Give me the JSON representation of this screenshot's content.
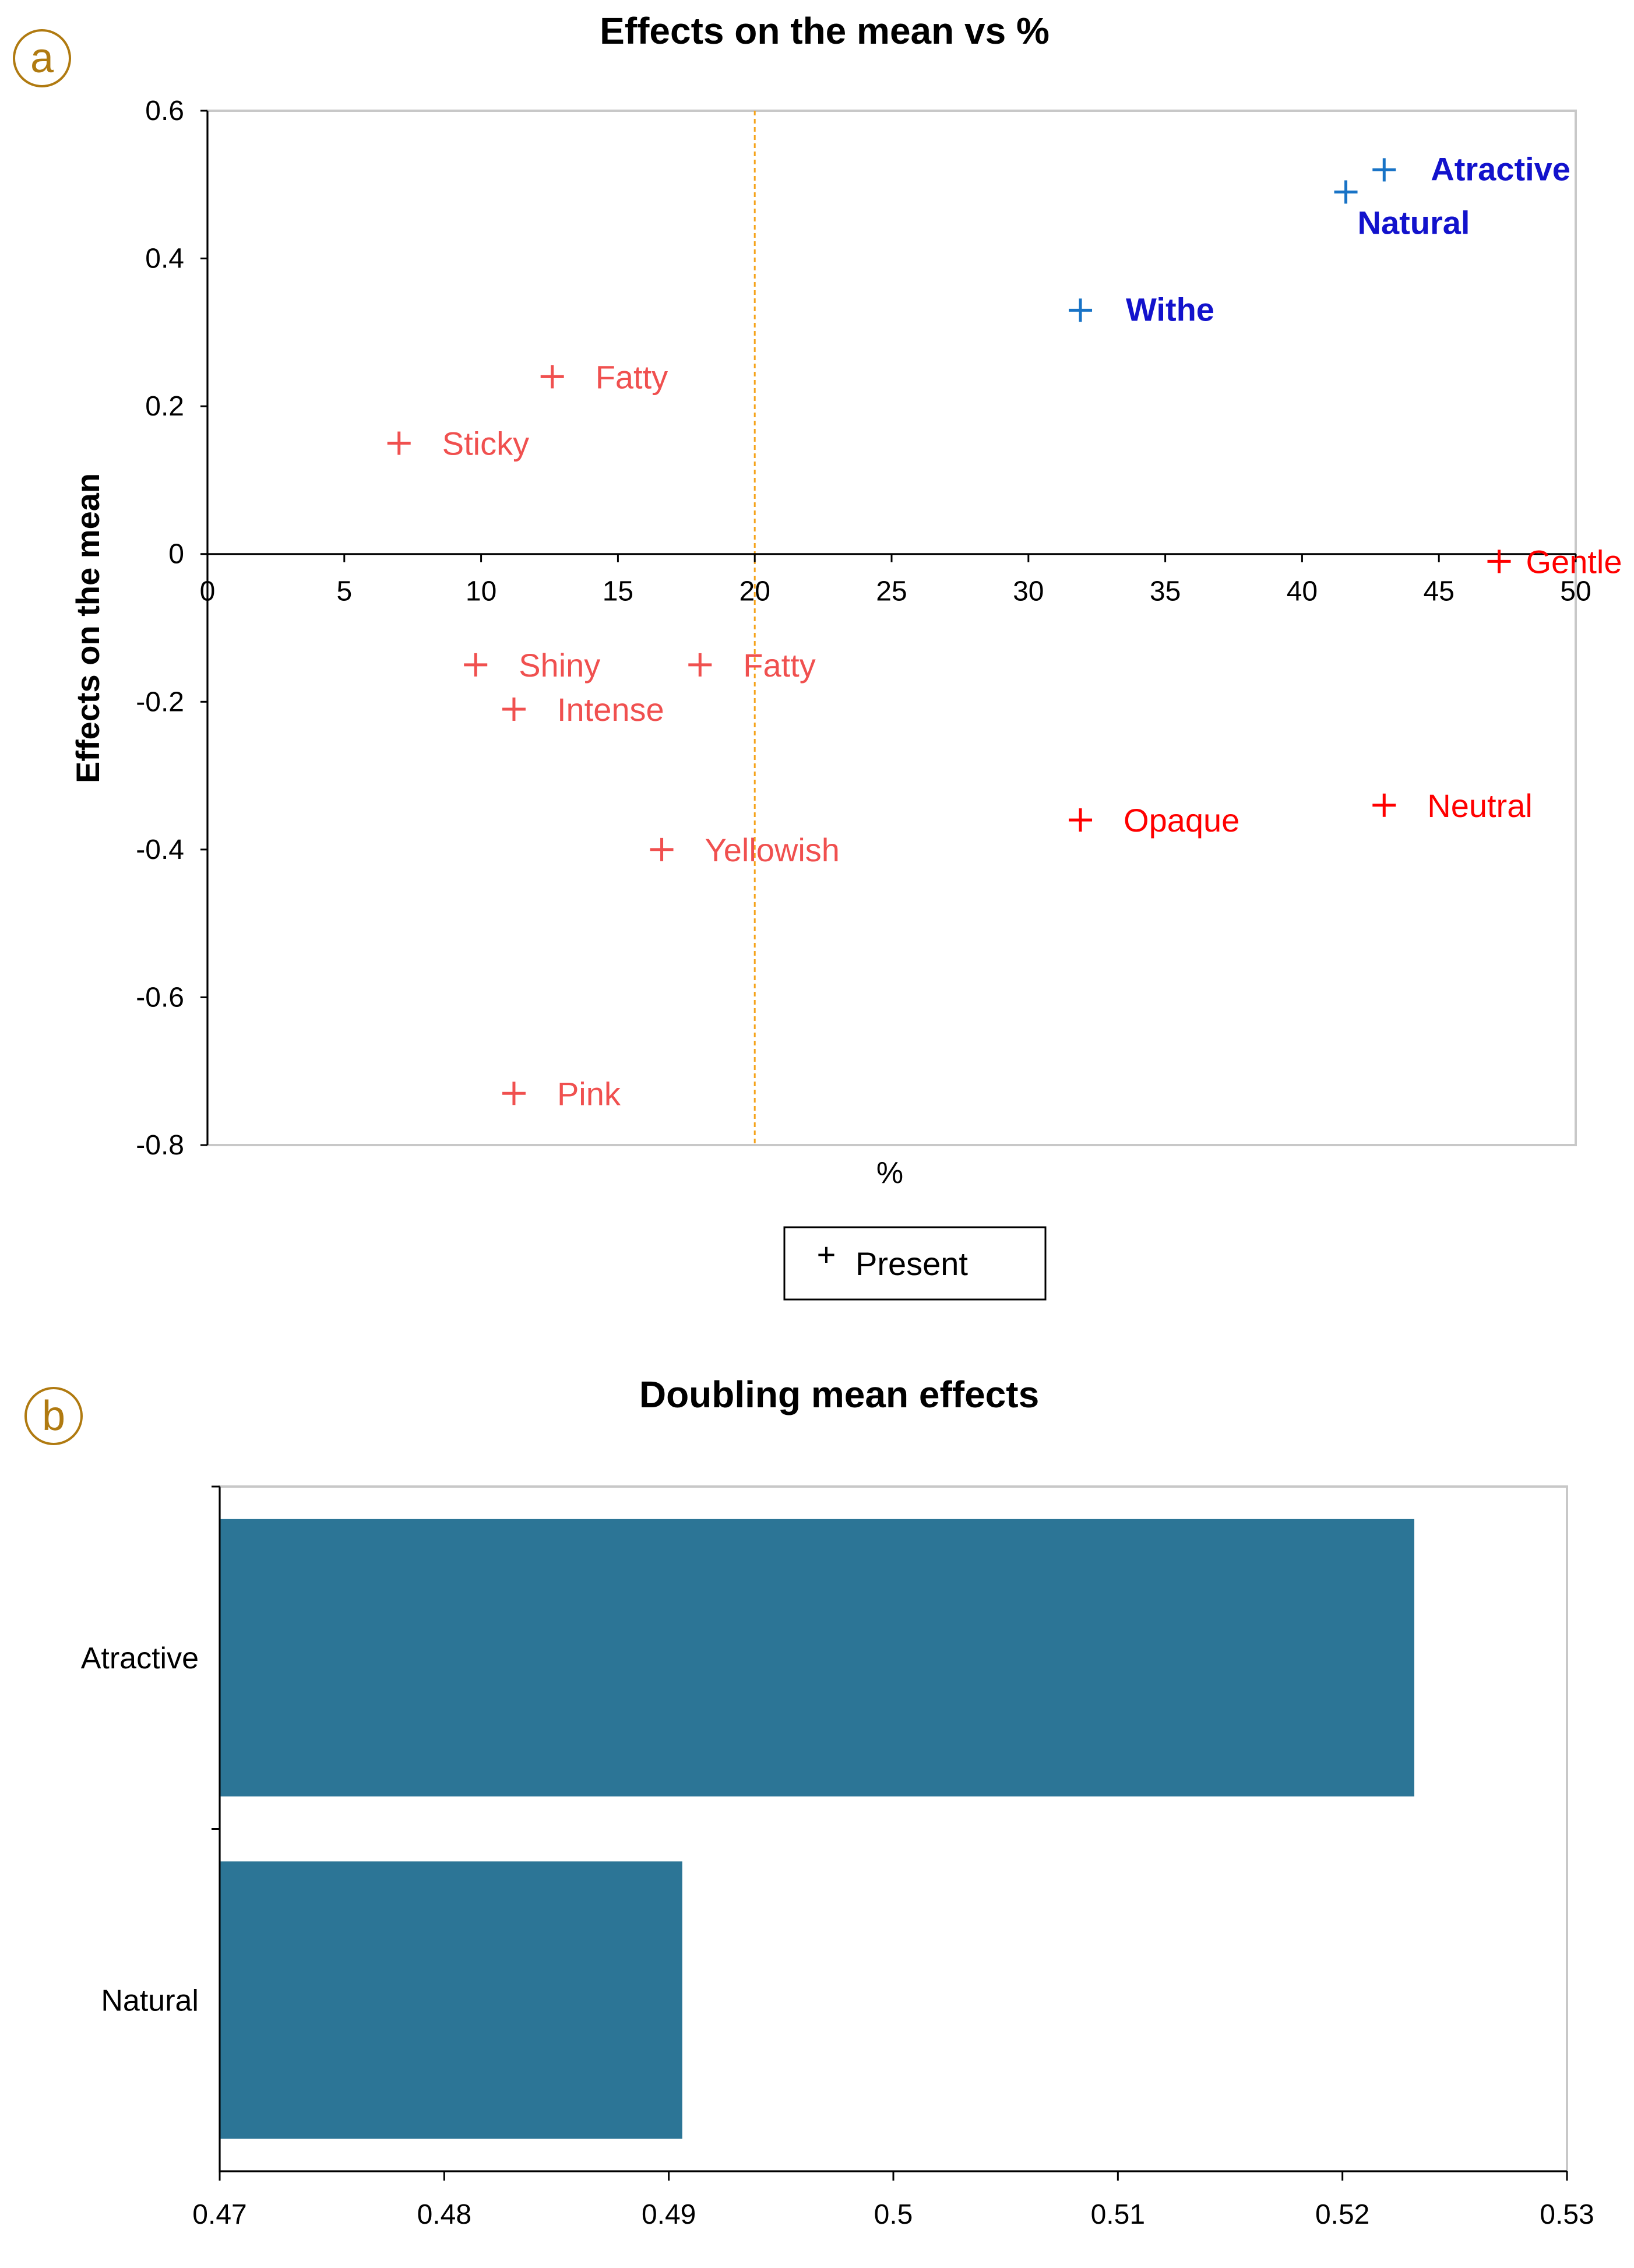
{
  "panel_a_badge": "a",
  "panel_b_badge": "b",
  "chart_data": [
    {
      "type": "scatter",
      "title": "Effects on the mean vs %",
      "xlabel": "%",
      "ylabel": "Effects on the mean",
      "xlim": [
        0,
        50
      ],
      "ylim": [
        -0.8,
        0.6
      ],
      "xticks": [
        "0",
        "5",
        "10",
        "15",
        "20",
        "25",
        "30",
        "35",
        "40",
        "45",
        "50"
      ],
      "yticks": [
        "-0.8",
        "-0.6",
        "-0.4",
        "-0.2",
        "0",
        "0.2",
        "0.4",
        "0.6"
      ],
      "reference_line_x": 20,
      "legend": {
        "marker": "+",
        "label": "Present"
      },
      "colors": {
        "negative": "#ff0000",
        "negative_light": "#f0504f",
        "positive": "#1873c6",
        "positive_label": "#1212cc",
        "reference": "#f5a31a"
      },
      "points": [
        {
          "label": "Atractive",
          "x": 43.0,
          "y": 0.52,
          "group": "positive"
        },
        {
          "label": "Natural",
          "x": 41.6,
          "y": 0.49,
          "group": "positive"
        },
        {
          "label": "Withe",
          "x": 31.9,
          "y": 0.33,
          "group": "positive"
        },
        {
          "label": "Fatty",
          "x": 12.6,
          "y": 0.24,
          "group": "negative_light"
        },
        {
          "label": "Sticky",
          "x": 7.0,
          "y": 0.15,
          "group": "negative_light"
        },
        {
          "label": "Gentle",
          "x": 47.2,
          "y": -0.01,
          "group": "negative"
        },
        {
          "label": "Shiny",
          "x": 9.8,
          "y": -0.15,
          "group": "negative_light"
        },
        {
          "label": "Fatty",
          "x": 18.0,
          "y": -0.15,
          "group": "negative_light"
        },
        {
          "label": "Intense",
          "x": 11.2,
          "y": -0.21,
          "group": "negative_light"
        },
        {
          "label": "Neutral",
          "x": 43.0,
          "y": -0.34,
          "group": "negative"
        },
        {
          "label": "Opaque",
          "x": 31.9,
          "y": -0.36,
          "group": "negative"
        },
        {
          "label": "Yellowish",
          "x": 16.6,
          "y": -0.4,
          "group": "negative_light"
        },
        {
          "label": "Pink",
          "x": 11.2,
          "y": -0.73,
          "group": "negative_light"
        }
      ]
    },
    {
      "type": "bar",
      "orientation": "horizontal",
      "title": "Doubling mean effects",
      "categories": [
        "Atractive",
        "Natural"
      ],
      "values": [
        0.5232,
        0.4906
      ],
      "xlim": [
        0.47,
        0.53
      ],
      "xticks": [
        "0.47",
        "0.48",
        "0.49",
        "0.5",
        "0.51",
        "0.52",
        "0.53"
      ],
      "bar_color": "#2c7596"
    }
  ]
}
